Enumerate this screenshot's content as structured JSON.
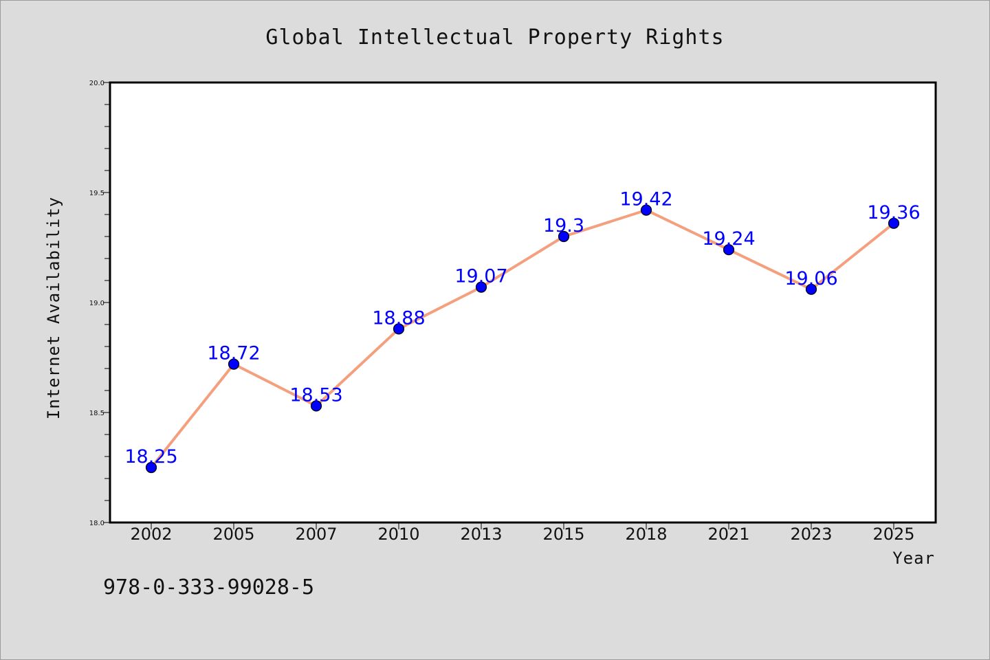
{
  "chart_data": {
    "type": "line",
    "title": "Global Intellectual Property Rights",
    "xlabel": "Year",
    "ylabel": "Internet Availability",
    "categories": [
      "2002",
      "2005",
      "2007",
      "2010",
      "2013",
      "2015",
      "2018",
      "2021",
      "2023",
      "2025"
    ],
    "series": [
      {
        "values": [
          18.25,
          18.72,
          18.53,
          18.88,
          19.07,
          19.3,
          19.42,
          19.24,
          19.06,
          19.36
        ],
        "line_color": "#f4a07f",
        "marker_color": "#0000ff"
      }
    ],
    "data_labels": [
      "18.25",
      "18.72",
      "18.53",
      "18.88",
      "19.07",
      "19.3",
      "19.42",
      "19.24",
      "19.06",
      "19.36"
    ],
    "ylim": [
      18.0,
      20.0
    ],
    "yticks": [
      "18.0",
      "18.5",
      "19.0",
      "19.5",
      "20.0"
    ],
    "grid": false,
    "background_color": "#dcdcdc",
    "plot_background": "#ffffff"
  },
  "footer": {
    "isbn": "978-0-333-99028-5"
  }
}
